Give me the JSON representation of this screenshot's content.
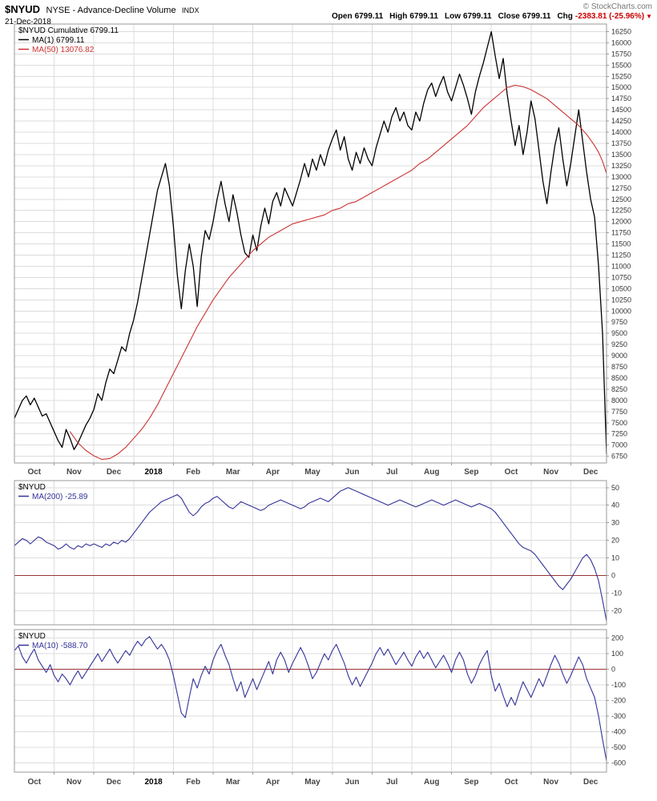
{
  "header": {
    "symbol": "$NYUD",
    "name": "NYSE - Advance-Decline Volume",
    "exchange": "INDX",
    "date": "21-Dec-2018",
    "copyright": "© StockCharts.com",
    "change_icon": "▼",
    "quote": [
      {
        "label": "Open",
        "value": "6799.11",
        "negative": false
      },
      {
        "label": "High",
        "value": "6799.11",
        "negative": false
      },
      {
        "label": "Low",
        "value": "6799.11",
        "negative": false
      },
      {
        "label": "Close",
        "value": "6799.11",
        "negative": false
      },
      {
        "label": "Chg",
        "value": "-2383.81 (-25.96%)",
        "negative": true
      }
    ]
  },
  "colors": {
    "grid": "#dcdcdc",
    "frame": "#999999",
    "axis_text": "#333333",
    "month_text": "#444444",
    "year_text": "#000000",
    "zero_line": "#993333",
    "negative": "#cc0000",
    "black_series": "#000000",
    "red_series": "#cc3333",
    "blue_series": "#333399"
  },
  "chart_data": {
    "type": "line",
    "x_categories": [
      "Oct",
      "Nov",
      "Dec",
      "2018",
      "Feb",
      "Mar",
      "Apr",
      "May",
      "Jun",
      "Jul",
      "Aug",
      "Sep",
      "Oct",
      "Nov",
      "Dec"
    ],
    "panels": [
      {
        "id": "main",
        "ylim": [
          6600,
          16420
        ],
        "yticks": [
          6750,
          7000,
          7250,
          7500,
          7750,
          8000,
          8250,
          8500,
          8750,
          9000,
          9250,
          9500,
          9750,
          10000,
          10250,
          10500,
          10750,
          11000,
          11250,
          11500,
          11750,
          12000,
          12250,
          12500,
          12750,
          13000,
          13250,
          13500,
          13750,
          14000,
          14250,
          14500,
          14750,
          15000,
          15250,
          15500,
          15750,
          16000,
          16250
        ],
        "zero_line": false,
        "x_labels_below": true,
        "legend": [
          {
            "text": "$NYUD Cumulative 6799.11",
            "color": "#000000",
            "dash": false
          },
          {
            "text": "MA(1) 6799.11",
            "color": "#000000",
            "dash": true
          },
          {
            "text": "MA(50) 13076.82",
            "color": "#cc3333",
            "dash": true
          }
        ],
        "series": [
          {
            "name": "nyud-cumulative",
            "color": "#000000",
            "width": 1.3,
            "values": [
              7600,
              7800,
              8000,
              8100,
              7900,
              8050,
              7850,
              7650,
              7700,
              7500,
              7300,
              7100,
              6950,
              7350,
              7150,
              6900,
              7050,
              7250,
              7450,
              7600,
              7800,
              8150,
              8000,
              8400,
              8700,
              8600,
              8900,
              9200,
              9100,
              9500,
              9800,
              10200,
              10700,
              11200,
              11700,
              12200,
              12700,
              13000,
              13300,
              12800,
              11900,
              10800,
              10050,
              10900,
              11500,
              11000,
              10100,
              11200,
              11800,
              11600,
              12000,
              12500,
              12900,
              12400,
              12000,
              12600,
              12200,
              11700,
              11300,
              11200,
              11700,
              11350,
              11900,
              12300,
              11950,
              12450,
              12650,
              12350,
              12750,
              12550,
              12350,
              12650,
              12950,
              13300,
              13000,
              13400,
              13150,
              13500,
              13250,
              13600,
              13850,
              14050,
              13600,
              13900,
              13400,
              13150,
              13550,
              13300,
              13650,
              13400,
              13250,
              13650,
              13950,
              14250,
              14000,
              14350,
              14550,
              14250,
              14450,
              14150,
              14050,
              14450,
              14250,
              14650,
              14950,
              15100,
              14800,
              15050,
              15250,
              14900,
              14700,
              15000,
              15300,
              15050,
              14750,
              14400,
              14900,
              15250,
              15550,
              15900,
              16250,
              15700,
              15200,
              15650,
              14850,
              14250,
              13700,
              14150,
              13500,
              14000,
              14700,
              14300,
              13600,
              12900,
              12400,
              13100,
              13700,
              14100,
              13400,
              12800,
              13300,
              13900,
              14500,
              13800,
              13100,
              12500,
              12100,
              11000,
              9500,
              6799.11
            ]
          },
          {
            "name": "ma50",
            "color": "#cc3333",
            "width": 1.1,
            "points": [
              [
                14,
                7300
              ],
              [
                16,
                7050
              ],
              [
                18,
                6880
              ],
              [
                20,
                6760
              ],
              [
                22,
                6680
              ],
              [
                24,
                6700
              ],
              [
                26,
                6800
              ],
              [
                28,
                6950
              ],
              [
                30,
                7150
              ],
              [
                32,
                7350
              ],
              [
                34,
                7600
              ],
              [
                36,
                7900
              ],
              [
                38,
                8250
              ],
              [
                40,
                8600
              ],
              [
                42,
                8950
              ],
              [
                44,
                9300
              ],
              [
                46,
                9650
              ],
              [
                48,
                9950
              ],
              [
                50,
                10250
              ],
              [
                52,
                10500
              ],
              [
                54,
                10750
              ],
              [
                56,
                10950
              ],
              [
                58,
                11150
              ],
              [
                60,
                11350
              ],
              [
                62,
                11500
              ],
              [
                64,
                11650
              ],
              [
                66,
                11750
              ],
              [
                68,
                11850
              ],
              [
                70,
                11950
              ],
              [
                72,
                12000
              ],
              [
                74,
                12050
              ],
              [
                76,
                12100
              ],
              [
                78,
                12150
              ],
              [
                80,
                12250
              ],
              [
                82,
                12300
              ],
              [
                84,
                12400
              ],
              [
                86,
                12450
              ],
              [
                88,
                12550
              ],
              [
                90,
                12650
              ],
              [
                92,
                12750
              ],
              [
                94,
                12850
              ],
              [
                96,
                12950
              ],
              [
                98,
                13050
              ],
              [
                100,
                13150
              ],
              [
                102,
                13300
              ],
              [
                104,
                13400
              ],
              [
                106,
                13550
              ],
              [
                108,
                13700
              ],
              [
                110,
                13850
              ],
              [
                112,
                14000
              ],
              [
                114,
                14150
              ],
              [
                116,
                14350
              ],
              [
                118,
                14550
              ],
              [
                120,
                14700
              ],
              [
                122,
                14850
              ],
              [
                124,
                15000
              ],
              [
                126,
                15050
              ],
              [
                128,
                15020
              ],
              [
                130,
                14950
              ],
              [
                132,
                14850
              ],
              [
                134,
                14750
              ],
              [
                136,
                14600
              ],
              [
                138,
                14450
              ],
              [
                140,
                14300
              ],
              [
                142,
                14150
              ],
              [
                144,
                13950
              ],
              [
                146,
                13700
              ],
              [
                147,
                13550
              ],
              [
                148,
                13350
              ],
              [
                149,
                13076.82
              ]
            ]
          }
        ]
      },
      {
        "id": "middle",
        "ylim": [
          -28,
          54
        ],
        "yticks": [
          -20,
          -10,
          0,
          10,
          20,
          30,
          40,
          50
        ],
        "zero_line": true,
        "x_labels_below": false,
        "legend": [
          {
            "text": "$NYUD",
            "color": "#000000",
            "dash": false
          },
          {
            "text": "MA(200) -25.89",
            "color": "#333399",
            "dash": true
          }
        ],
        "series": [
          {
            "name": "ma200",
            "color": "#333399",
            "width": 1.1,
            "values": [
              17,
              19,
              21,
              20,
              18,
              20,
              22,
              21,
              19,
              18,
              17,
              15,
              16,
              18,
              16,
              15,
              17,
              16,
              18,
              17,
              18,
              17,
              16,
              18,
              17,
              19,
              18,
              20,
              19,
              21,
              24,
              27,
              30,
              33,
              36,
              38,
              40,
              42,
              43,
              44,
              45,
              46,
              44,
              40,
              36,
              34,
              36,
              39,
              41,
              42,
              44,
              45,
              43,
              41,
              39,
              38,
              40,
              42,
              41,
              40,
              39,
              38,
              37,
              38,
              40,
              41,
              42,
              43,
              42,
              41,
              40,
              39,
              38,
              39,
              41,
              42,
              43,
              44,
              43,
              42,
              44,
              46,
              48,
              49,
              50,
              49,
              48,
              47,
              46,
              45,
              44,
              43,
              42,
              41,
              40,
              41,
              42,
              43,
              42,
              41,
              40,
              39,
              40,
              41,
              42,
              43,
              42,
              41,
              40,
              41,
              42,
              43,
              42,
              41,
              40,
              39,
              40,
              41,
              40,
              39,
              38,
              36,
              33,
              30,
              27,
              24,
              21,
              18,
              16,
              15,
              14,
              12,
              9,
              6,
              3,
              0,
              -3,
              -6,
              -8,
              -5,
              -2,
              2,
              6,
              10,
              12,
              9,
              4,
              -3,
              -14,
              -25.89
            ]
          }
        ]
      },
      {
        "id": "lower",
        "ylim": [
          -660,
          255
        ],
        "yticks": [
          -600,
          -500,
          -400,
          -300,
          -200,
          -100,
          0,
          100,
          200
        ],
        "zero_line": true,
        "x_labels_below": true,
        "legend": [
          {
            "text": "$NYUD",
            "color": "#000000",
            "dash": false
          },
          {
            "text": "MA(10) -588.70",
            "color": "#333399",
            "dash": true
          }
        ],
        "series": [
          {
            "name": "ma10",
            "color": "#333399",
            "width": 1.1,
            "values": [
              120,
              150,
              80,
              40,
              90,
              130,
              60,
              20,
              -20,
              30,
              -40,
              -80,
              -30,
              -60,
              -100,
              -50,
              -10,
              -60,
              -20,
              20,
              60,
              100,
              50,
              90,
              130,
              80,
              40,
              80,
              120,
              90,
              140,
              180,
              150,
              190,
              210,
              170,
              130,
              160,
              120,
              60,
              -40,
              -160,
              -280,
              -310,
              -180,
              -60,
              -120,
              -40,
              20,
              -30,
              60,
              120,
              160,
              90,
              30,
              -60,
              -140,
              -80,
              -180,
              -120,
              -60,
              -130,
              -70,
              -10,
              50,
              -30,
              60,
              110,
              60,
              -20,
              40,
              90,
              140,
              90,
              20,
              -60,
              -20,
              40,
              100,
              60,
              120,
              160,
              100,
              40,
              -40,
              -100,
              -50,
              -110,
              -60,
              -10,
              40,
              100,
              140,
              90,
              130,
              80,
              30,
              70,
              110,
              60,
              20,
              80,
              120,
              70,
              110,
              60,
              10,
              50,
              90,
              40,
              -20,
              60,
              110,
              60,
              -30,
              -90,
              -40,
              30,
              80,
              120,
              -40,
              -140,
              -90,
              -170,
              -240,
              -180,
              -230,
              -150,
              -80,
              -130,
              -180,
              -120,
              -60,
              -110,
              -40,
              30,
              90,
              40,
              -30,
              -90,
              -40,
              20,
              80,
              30,
              -60,
              -120,
              -180,
              -300,
              -450,
              -588.7
            ]
          }
        ]
      }
    ]
  }
}
